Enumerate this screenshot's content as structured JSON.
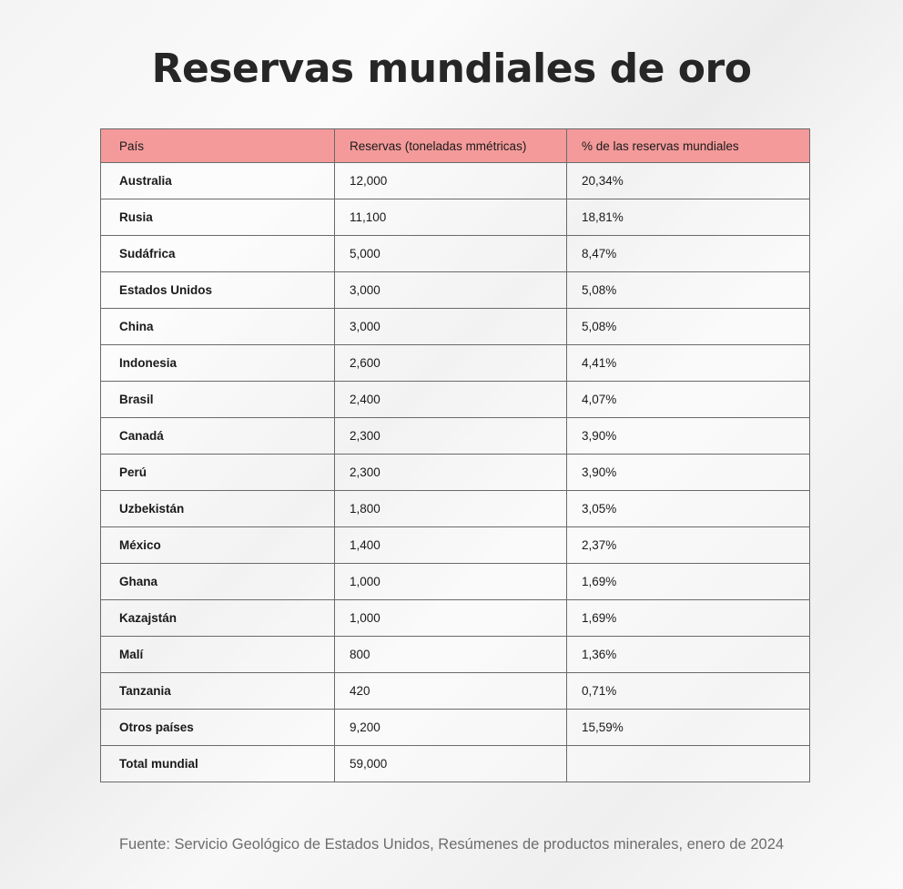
{
  "title": "Reservas mundiales de oro",
  "source": "Fuente: Servicio Geológico de Estados Unidos, Resúmenes de productos minerales, enero de 2024",
  "colors": {
    "header_bg": "#f49a9a",
    "text": "#1a1a1a",
    "border": "#6a6a6a"
  },
  "chart_data": {
    "type": "table",
    "title": "Reservas mundiales de oro",
    "columns": [
      "País",
      "Reservas (toneladas mmétricas)",
      "% de las reservas mundiales"
    ],
    "rows": [
      [
        "Australia",
        "12,000",
        "20,34%"
      ],
      [
        "Rusia",
        "11,100",
        "18,81%"
      ],
      [
        "Sudáfrica",
        "5,000",
        "8,47%"
      ],
      [
        "Estados Unidos",
        "3,000",
        "5,08%"
      ],
      [
        "China",
        "3,000",
        "5,08%"
      ],
      [
        "Indonesia",
        "2,600",
        "4,41%"
      ],
      [
        "Brasil",
        "2,400",
        "4,07%"
      ],
      [
        "Canadá",
        "2,300",
        "3,90%"
      ],
      [
        "Perú",
        "2,300",
        "3,90%"
      ],
      [
        "Uzbekistán",
        "1,800",
        "3,05%"
      ],
      [
        "México",
        "1,400",
        "2,37%"
      ],
      [
        "Ghana",
        "1,000",
        "1,69%"
      ],
      [
        "Kazajstán",
        "1,000",
        "1,69%"
      ],
      [
        "Malí",
        "800",
        "1,36%"
      ],
      [
        "Tanzania",
        "420",
        "0,71%"
      ],
      [
        "Otros países",
        "9,200",
        "15,59%"
      ],
      [
        "Total mundial",
        "59,000",
        ""
      ]
    ]
  }
}
